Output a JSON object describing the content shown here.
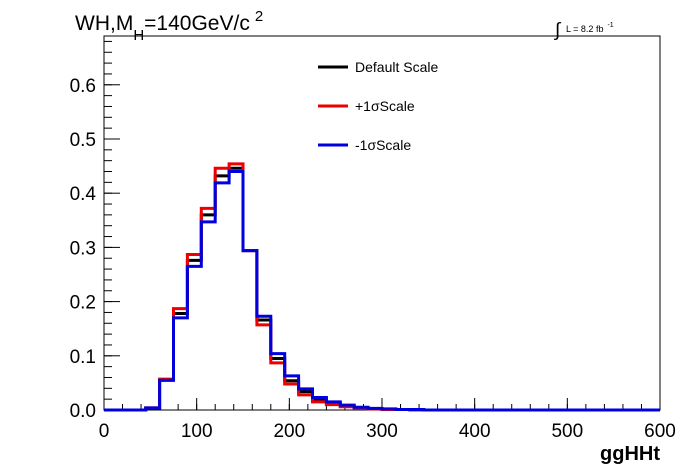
{
  "chart_data": {
    "type": "line",
    "title": {
      "main": "WH,M",
      "sub": "H",
      "rest": "=140GeV/c",
      "sup": "2"
    },
    "lumi": {
      "integral": "∫",
      "text": "L = 8.2 fb",
      "sup": "-1"
    },
    "xlabel": "ggHHt",
    "ylabel": "",
    "xlim": [
      0,
      600
    ],
    "ylim": [
      0,
      0.69
    ],
    "xticks": [
      0,
      100,
      200,
      300,
      400,
      500,
      600
    ],
    "xtick_labels": [
      "0",
      "100",
      "200",
      "300",
      "400",
      "500",
      "600"
    ],
    "yticks": [
      0,
      0.1,
      0.2,
      0.3,
      0.4,
      0.5,
      0.6
    ],
    "ytick_labels": [
      "0.0",
      "0.1",
      "0.2",
      "0.3",
      "0.4",
      "0.5",
      "0.6"
    ],
    "grid": false,
    "legend_position": "top-center",
    "bin_edges": [
      0,
      15,
      30,
      45,
      60,
      75,
      90,
      105,
      120,
      135,
      150,
      165,
      180,
      195,
      210,
      225,
      240,
      255,
      270,
      285,
      300,
      315,
      330,
      345,
      360,
      375,
      390,
      405,
      420,
      435,
      450,
      465,
      480,
      495,
      510,
      525,
      540,
      555,
      570,
      585,
      600
    ],
    "series": [
      {
        "name": "Default Scale",
        "color": "#000000",
        "values": [
          0,
          0,
          0,
          0.003,
          0.055,
          0.178,
          0.276,
          0.36,
          0.432,
          0.446,
          0.294,
          0.166,
          0.095,
          0.054,
          0.034,
          0.02,
          0.012,
          0.007,
          0.004,
          0.002,
          0.001,
          0.001,
          0.001,
          0,
          0,
          0,
          0,
          0,
          0,
          0,
          0,
          0,
          0,
          0,
          0,
          0,
          0,
          0,
          0,
          0
        ]
      },
      {
        "name": "+1σScale",
        "color": "#ee0000",
        "values": [
          0,
          0,
          0,
          0.004,
          0.057,
          0.187,
          0.287,
          0.372,
          0.446,
          0.454,
          0.294,
          0.157,
          0.087,
          0.048,
          0.028,
          0.015,
          0.01,
          0.006,
          0.003,
          0.002,
          0.001,
          0.001,
          0,
          0,
          0,
          0,
          0,
          0,
          0,
          0,
          0,
          0,
          0,
          0,
          0,
          0,
          0,
          0,
          0,
          0
        ]
      },
      {
        "name": "-1σScale",
        "color": "#0000dd",
        "values": [
          0,
          0,
          0,
          0.004,
          0.055,
          0.17,
          0.265,
          0.347,
          0.419,
          0.44,
          0.294,
          0.173,
          0.104,
          0.063,
          0.039,
          0.023,
          0.015,
          0.009,
          0.005,
          0.003,
          0.002,
          0.001,
          0.001,
          0,
          0,
          0,
          0,
          0,
          0,
          0,
          0,
          0,
          0,
          0,
          0,
          0,
          0,
          0,
          0,
          0
        ]
      }
    ]
  }
}
